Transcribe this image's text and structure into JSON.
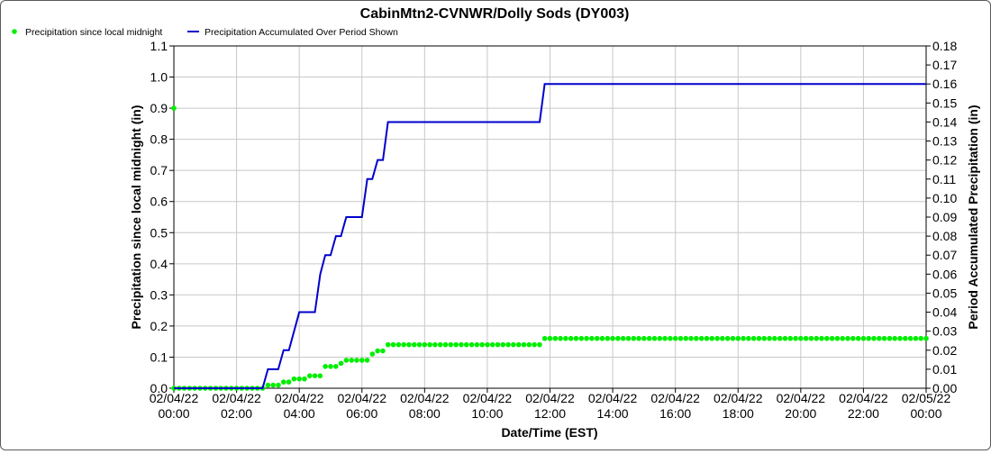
{
  "chart_data": {
    "type": "line",
    "title": "CabinMtn2-CVNWR/Dolly Sods (DY003)",
    "xlabel": "Date/Time (EST)",
    "ylabel_left": "Precipitation since local midnight (in)",
    "ylabel_right": "Period Accumulated Precipitation (in)",
    "x_range_hours": [
      0,
      24
    ],
    "ylim_left": [
      0,
      1.1
    ],
    "ylim_right": [
      0,
      0.18
    ],
    "grid": true,
    "legend_position": "top-left",
    "x_tick_labels": [
      {
        "date": "02/04/22",
        "time": "00:00"
      },
      {
        "date": "02/04/22",
        "time": "02:00"
      },
      {
        "date": "02/04/22",
        "time": "04:00"
      },
      {
        "date": "02/04/22",
        "time": "06:00"
      },
      {
        "date": "02/04/22",
        "time": "08:00"
      },
      {
        "date": "02/04/22",
        "time": "10:00"
      },
      {
        "date": "02/04/22",
        "time": "12:00"
      },
      {
        "date": "02/04/22",
        "time": "14:00"
      },
      {
        "date": "02/04/22",
        "time": "16:00"
      },
      {
        "date": "02/04/22",
        "time": "18:00"
      },
      {
        "date": "02/04/22",
        "time": "20:00"
      },
      {
        "date": "02/04/22",
        "time": "22:00"
      },
      {
        "date": "02/05/22",
        "time": "00:00"
      }
    ],
    "y_left_ticks": [
      "0.0",
      "0.1",
      "0.2",
      "0.3",
      "0.4",
      "0.5",
      "0.6",
      "0.7",
      "0.8",
      "0.9",
      "1.0",
      "1.1"
    ],
    "y_right_ticks": [
      "0.00",
      "0.01",
      "0.02",
      "0.03",
      "0.04",
      "0.05",
      "0.06",
      "0.07",
      "0.08",
      "0.09",
      "0.10",
      "0.11",
      "0.12",
      "0.13",
      "0.14",
      "0.15",
      "0.16",
      "0.17",
      "0.18"
    ],
    "series": [
      {
        "name": "Precipitation since local midnight",
        "axis": "left",
        "style": "points",
        "color": "#00ee00",
        "interval_minutes": 10,
        "steps": [
          {
            "from_hour": 0.0,
            "value": 0.0
          },
          {
            "from_hour": 3.0,
            "value": 0.01
          },
          {
            "from_hour": 3.5,
            "value": 0.02
          },
          {
            "from_hour": 3.83,
            "value": 0.03
          },
          {
            "from_hour": 4.17,
            "value": 0.04
          },
          {
            "from_hour": 4.67,
            "value": 0.06
          },
          {
            "from_hour": 4.83,
            "value": 0.07
          },
          {
            "from_hour": 5.17,
            "value": 0.08
          },
          {
            "from_hour": 5.5,
            "value": 0.09
          },
          {
            "from_hour": 6.17,
            "value": 0.11
          },
          {
            "from_hour": 6.5,
            "value": 0.12
          },
          {
            "from_hour": 6.83,
            "value": 0.14
          },
          {
            "from_hour": 11.83,
            "value": 0.16
          }
        ],
        "extra_points": [
          {
            "hour": 0.0,
            "value": 0.9
          }
        ]
      },
      {
        "name": "Precipitation Accumulated Over Period Shown",
        "axis": "right",
        "style": "line",
        "color": "#0000cc",
        "points": [
          [
            0.0,
            0.0
          ],
          [
            2.83,
            0.0
          ],
          [
            3.0,
            0.01
          ],
          [
            3.33,
            0.01
          ],
          [
            3.5,
            0.02
          ],
          [
            3.67,
            0.02
          ],
          [
            4.0,
            0.04
          ],
          [
            4.5,
            0.04
          ],
          [
            4.67,
            0.06
          ],
          [
            4.83,
            0.07
          ],
          [
            5.0,
            0.07
          ],
          [
            5.17,
            0.08
          ],
          [
            5.33,
            0.08
          ],
          [
            5.5,
            0.09
          ],
          [
            6.0,
            0.09
          ],
          [
            6.17,
            0.11
          ],
          [
            6.33,
            0.11
          ],
          [
            6.5,
            0.12
          ],
          [
            6.67,
            0.12
          ],
          [
            6.83,
            0.14
          ],
          [
            11.67,
            0.14
          ],
          [
            11.83,
            0.16
          ],
          [
            24.0,
            0.16
          ]
        ]
      }
    ]
  }
}
